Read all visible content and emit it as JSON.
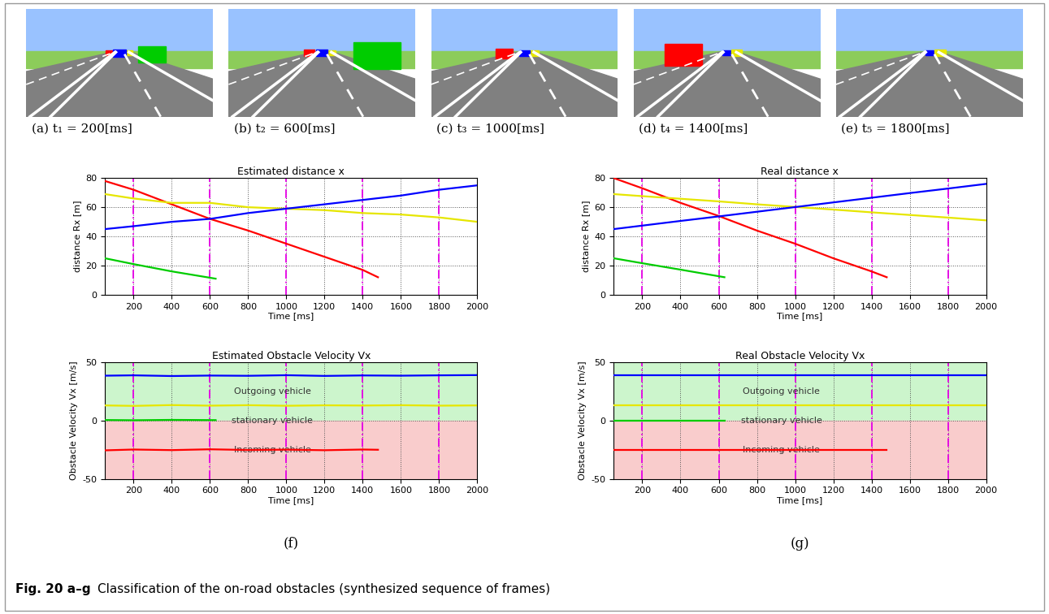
{
  "frames": [
    {
      "label": "(a) t₁ = 200[ms]",
      "time": 200
    },
    {
      "label": "(b) t₂ = 600[ms]",
      "time": 600
    },
    {
      "label": "(c) t₃ = 1000[ms]",
      "time": 1000
    },
    {
      "label": "(d) t₄ = 1400[ms]",
      "time": 1400
    },
    {
      "label": "(e) t₅ = 1800[ms]",
      "time": 1800
    }
  ],
  "panel_labels": [
    "(f)",
    "(g)"
  ],
  "figure_label": "Fig. 20 a–g",
  "caption": "Classification of the on-road obstacles (synthesized sequence of frames)",
  "chart_data": [
    {
      "type": "line",
      "title": "Estimated distance x",
      "x_label": "Time [ms]",
      "y_label": "distance Rx [m]",
      "xlim": [
        50,
        2000
      ],
      "ylim": [
        0,
        80
      ],
      "xticks": [
        200,
        400,
        600,
        800,
        1000,
        1200,
        1400,
        1600,
        1800,
        2000
      ],
      "yticks": [
        0,
        20,
        40,
        60,
        80
      ],
      "grid": true,
      "vlines": [
        200,
        600,
        1000,
        1400,
        1800
      ],
      "series": [
        {
          "color": "#ff0000",
          "x": [
            50,
            100,
            200,
            400,
            600,
            800,
            1000,
            1200,
            1400,
            1480
          ],
          "values": [
            78,
            76,
            72,
            62,
            52,
            44,
            35,
            26,
            17,
            12
          ]
        },
        {
          "color": "#e6e600",
          "x": [
            50,
            200,
            400,
            600,
            800,
            1000,
            1200,
            1400,
            1600,
            1800,
            2000
          ],
          "values": [
            69,
            66,
            63,
            63,
            60,
            59,
            58,
            56,
            55,
            53,
            50
          ]
        },
        {
          "color": "#0000ff",
          "x": [
            50,
            200,
            400,
            600,
            800,
            1000,
            1200,
            1400,
            1600,
            1800,
            2000
          ],
          "values": [
            45,
            47,
            50,
            52,
            56,
            59,
            62,
            65,
            68,
            72,
            75
          ]
        },
        {
          "color": "#00cc00",
          "x": [
            50,
            200,
            400,
            630
          ],
          "values": [
            25,
            21,
            16,
            11
          ]
        }
      ]
    },
    {
      "type": "line",
      "title": "Estimated Obstacle Velocity Vx",
      "x_label": "Time [ms]",
      "y_label": "Obstacle Velocity Vx [m/s]",
      "xlim": [
        50,
        2000
      ],
      "ylim": [
        -50,
        50
      ],
      "xticks": [
        200,
        400,
        600,
        800,
        1000,
        1200,
        1400,
        1600,
        1800,
        2000
      ],
      "yticks": [
        -50,
        0,
        50
      ],
      "grid": true,
      "vlines": [
        200,
        600,
        1000,
        1400,
        1800
      ],
      "regions": [
        {
          "label": "Outgoing vehicle",
          "range": [
            0,
            50
          ],
          "color": "#ccf5cc"
        },
        {
          "label": "stationary vehicle",
          "range": [
            0,
            0
          ]
        },
        {
          "label": "Incoming vehicle",
          "range": [
            -50,
            0
          ],
          "color": "#f9cccc"
        }
      ],
      "series": [
        {
          "color": "#0000ff",
          "x": [
            50,
            200,
            400,
            600,
            800,
            1000,
            1200,
            1400,
            1600,
            1800,
            2000
          ],
          "values": [
            38.5,
            38.8,
            38.2,
            38.6,
            38.4,
            38.9,
            38.3,
            38.7,
            38.5,
            38.8,
            39
          ]
        },
        {
          "color": "#e6e600",
          "x": [
            50,
            200,
            400,
            600,
            800,
            1000,
            1200,
            1400,
            1600,
            1800,
            2000
          ],
          "values": [
            13,
            12.6,
            13.3,
            12.8,
            13.2,
            12.7,
            13.1,
            12.9,
            13.2,
            12.8,
            13
          ]
        },
        {
          "color": "#00cc00",
          "x": [
            50,
            200,
            400,
            630
          ],
          "values": [
            0.5,
            0.3,
            0.6,
            0.4
          ]
        },
        {
          "color": "#ff0000",
          "x": [
            50,
            200,
            400,
            600,
            800,
            1000,
            1200,
            1400,
            1480
          ],
          "values": [
            -25.5,
            -24.8,
            -25.3,
            -24.6,
            -25.2,
            -24.9,
            -25.4,
            -24.8,
            -25
          ]
        }
      ]
    },
    {
      "type": "line",
      "title": "Real distance x",
      "x_label": "Time [ms]",
      "y_label": "distance Rx [m]",
      "xlim": [
        50,
        2000
      ],
      "ylim": [
        0,
        80
      ],
      "xticks": [
        200,
        400,
        600,
        800,
        1000,
        1200,
        1400,
        1600,
        1800,
        2000
      ],
      "yticks": [
        0,
        20,
        40,
        60,
        80
      ],
      "grid": true,
      "vlines": [
        200,
        600,
        1000,
        1400,
        1800
      ],
      "series": [
        {
          "color": "#ff0000",
          "x": [
            50,
            200,
            400,
            600,
            800,
            1000,
            1200,
            1400,
            1480
          ],
          "values": [
            80,
            73,
            63,
            54,
            44,
            35,
            25,
            16,
            12
          ]
        },
        {
          "color": "#e6e600",
          "x": [
            50,
            200,
            400,
            600,
            800,
            1000,
            1200,
            1400,
            1600,
            1800,
            2000
          ],
          "values": [
            69,
            67.6,
            65.8,
            64,
            62,
            60.2,
            58.4,
            56.5,
            54.7,
            52.9,
            51
          ]
        },
        {
          "color": "#0000ff",
          "x": [
            50,
            200,
            400,
            600,
            800,
            1000,
            1200,
            1400,
            1600,
            1800,
            2000
          ],
          "values": [
            45,
            47.4,
            50.6,
            53.7,
            56.9,
            60.1,
            63.3,
            66.5,
            69.7,
            72.8,
            76
          ]
        },
        {
          "color": "#00cc00",
          "x": [
            50,
            200,
            400,
            630
          ],
          "values": [
            25,
            21.6,
            17.2,
            12
          ]
        }
      ]
    },
    {
      "type": "line",
      "title": "Real Obstacle Velocity Vx",
      "x_label": "Time [ms]",
      "y_label": "Obstacle Velocity Vx [m/s]",
      "xlim": [
        50,
        2000
      ],
      "ylim": [
        -50,
        50
      ],
      "xticks": [
        200,
        400,
        600,
        800,
        1000,
        1200,
        1400,
        1600,
        1800,
        2000
      ],
      "yticks": [
        -50,
        0,
        50
      ],
      "grid": true,
      "vlines": [
        200,
        600,
        1000,
        1400,
        1800
      ],
      "regions": [
        {
          "label": "Outgoing vehicle",
          "range": [
            0,
            50
          ],
          "color": "#ccf5cc"
        },
        {
          "label": "stationary vehicle",
          "range": [
            0,
            0
          ]
        },
        {
          "label": "Incoming vehicle",
          "range": [
            -50,
            0
          ],
          "color": "#f9cccc"
        }
      ],
      "series": [
        {
          "color": "#0000ff",
          "x": [
            50,
            2000
          ],
          "values": [
            39,
            39
          ]
        },
        {
          "color": "#e6e600",
          "x": [
            50,
            2000
          ],
          "values": [
            13,
            13
          ]
        },
        {
          "color": "#00cc00",
          "x": [
            50,
            630
          ],
          "values": [
            0,
            0
          ]
        },
        {
          "color": "#ff0000",
          "x": [
            50,
            1480
          ],
          "values": [
            -25,
            -25
          ]
        }
      ]
    }
  ]
}
